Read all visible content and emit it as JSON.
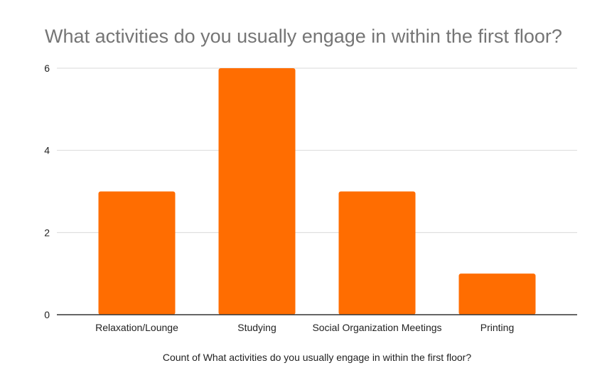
{
  "chart_data": {
    "type": "bar",
    "title": "What activities do you usually engage in within the first floor?",
    "xlabel": "Count of What activities do you usually engage in within the first floor?",
    "ylabel": "",
    "categories": [
      "Relaxation/Lounge",
      "Studying",
      "Social Organization Meetings",
      "Printing"
    ],
    "values": [
      3,
      6,
      3,
      1
    ],
    "ylim": [
      0,
      6
    ],
    "yticks": [
      "0",
      "2",
      "4",
      "6"
    ],
    "grid": true,
    "legend": "none",
    "bar_color": "#ff6d01",
    "grid_color": "#d9d9d9",
    "axis_color": "#333333"
  }
}
